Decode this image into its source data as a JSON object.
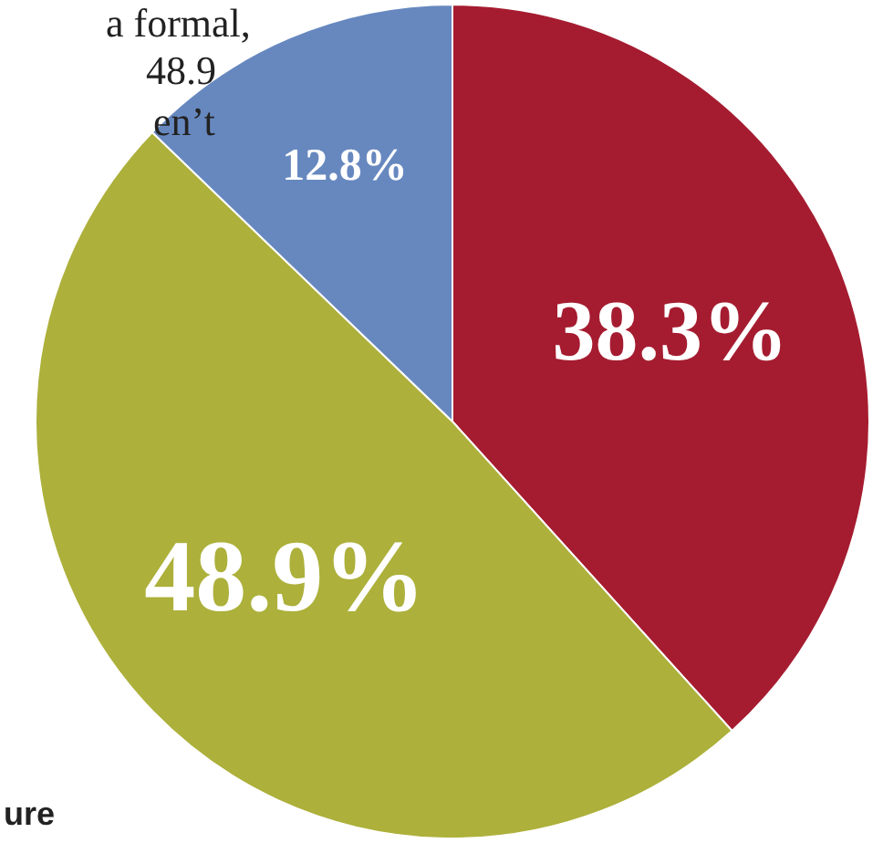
{
  "chart_data": {
    "type": "pie",
    "categories": [
      null,
      null,
      null
    ],
    "values": [
      38.3,
      48.9,
      12.8
    ],
    "colors": [
      "#a51c30",
      "#adb03a",
      "#6788bf"
    ],
    "value_labels": [
      "38.3%",
      "48.9%",
      "12.8%"
    ],
    "legend": false,
    "annotations": [
      "a formal,",
      "48.9",
      "en’t",
      "ure"
    ]
  }
}
